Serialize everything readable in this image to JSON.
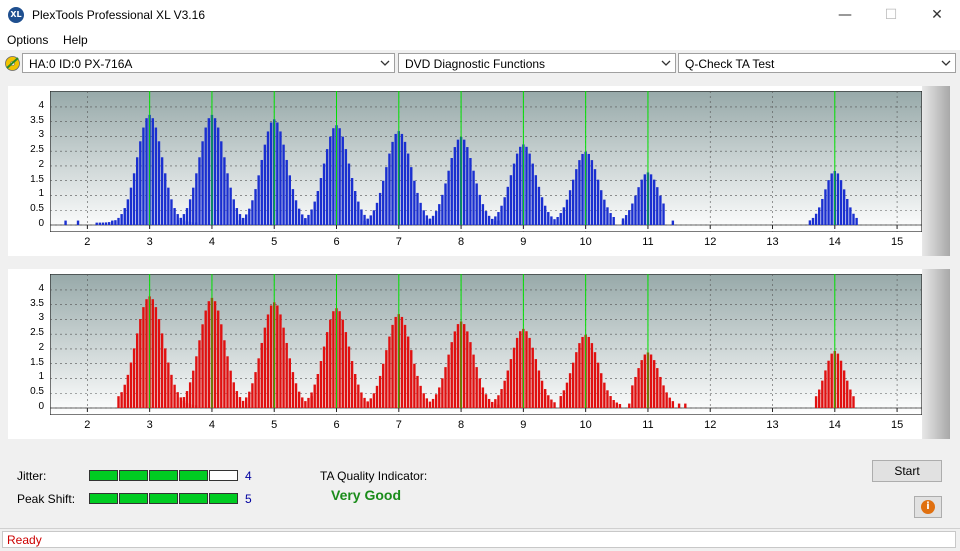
{
  "window": {
    "title": "PlexTools Professional XL V3.16",
    "icon_text": "XL",
    "min_glyph": "—",
    "max_glyph": "☐",
    "close_glyph": "✕"
  },
  "menu": {
    "options": "Options",
    "help": "Help"
  },
  "selectors": {
    "drive": "HA:0 ID:0  PX-716A",
    "function": "DVD Diagnostic Functions",
    "test": "Q-Check TA Test"
  },
  "charts": {
    "y_ticks": [
      "4",
      "3.5",
      "3",
      "2.5",
      "2",
      "1.5",
      "1",
      "0.5",
      "0"
    ],
    "x_ticks": [
      "2",
      "3",
      "4",
      "5",
      "6",
      "7",
      "8",
      "9",
      "10",
      "11",
      "12",
      "13",
      "14",
      "15"
    ]
  },
  "chart_data": [
    {
      "type": "bar",
      "title": "",
      "color": "#1a2fd0",
      "xlim": [
        1.4,
        15.4
      ],
      "ylim": [
        0,
        4.2
      ],
      "grid": true,
      "peak_markers": [
        3,
        4,
        5,
        6,
        7,
        8,
        9,
        10,
        11,
        14
      ],
      "marker_color": "#00e000",
      "groups": [
        {
          "center": 3.0,
          "peak": 3.65,
          "sigma": 0.2,
          "from": 2.15,
          "to": 3.75
        },
        {
          "center": 4.0,
          "peak": 3.65,
          "sigma": 0.2,
          "from": 3.45,
          "to": 4.5
        },
        {
          "center": 5.0,
          "peak": 3.5,
          "sigma": 0.2,
          "from": 4.45,
          "to": 5.5
        },
        {
          "center": 6.0,
          "peak": 3.3,
          "sigma": 0.2,
          "from": 5.45,
          "to": 6.45
        },
        {
          "center": 7.0,
          "peak": 3.1,
          "sigma": 0.2,
          "from": 6.45,
          "to": 7.5
        },
        {
          "center": 8.0,
          "peak": 2.9,
          "sigma": 0.2,
          "from": 7.45,
          "to": 8.55
        },
        {
          "center": 9.0,
          "peak": 2.65,
          "sigma": 0.2,
          "from": 8.5,
          "to": 9.5
        },
        {
          "center": 10.0,
          "peak": 2.4,
          "sigma": 0.2,
          "from": 9.55,
          "to": 10.45
        },
        {
          "center": 11.0,
          "peak": 1.7,
          "sigma": 0.18,
          "from": 10.6,
          "to": 11.25
        },
        {
          "center": 14.0,
          "peak": 1.75,
          "sigma": 0.16,
          "from": 13.6,
          "to": 14.35
        }
      ],
      "sparse_bars": [
        [
          1.65,
          0.15
        ],
        [
          1.85,
          0.15
        ],
        [
          2.4,
          0.15
        ],
        [
          5.5,
          0.15
        ],
        [
          6.5,
          0.2
        ],
        [
          8.6,
          0.15
        ],
        [
          9.6,
          0.1
        ],
        [
          10.6,
          0.15
        ],
        [
          11.4,
          0.15
        ]
      ]
    },
    {
      "type": "bar",
      "title": "",
      "color": "#e01010",
      "xlim": [
        1.4,
        15.4
      ],
      "ylim": [
        0,
        4.2
      ],
      "grid": true,
      "peak_markers": [
        3,
        4,
        5,
        6,
        7,
        8,
        9,
        10,
        11,
        14
      ],
      "marker_color": "#00e000",
      "groups": [
        {
          "center": 3.0,
          "peak": 3.7,
          "sigma": 0.22,
          "from": 2.55,
          "to": 3.75
        },
        {
          "center": 4.0,
          "peak": 3.65,
          "sigma": 0.2,
          "from": 3.55,
          "to": 4.5
        },
        {
          "center": 5.0,
          "peak": 3.5,
          "sigma": 0.2,
          "from": 4.55,
          "to": 5.5
        },
        {
          "center": 6.0,
          "peak": 3.3,
          "sigma": 0.2,
          "from": 5.55,
          "to": 6.5
        },
        {
          "center": 7.0,
          "peak": 3.1,
          "sigma": 0.2,
          "from": 6.55,
          "to": 7.5
        },
        {
          "center": 8.0,
          "peak": 2.85,
          "sigma": 0.2,
          "from": 7.55,
          "to": 8.6
        },
        {
          "center": 9.0,
          "peak": 2.6,
          "sigma": 0.2,
          "from": 8.6,
          "to": 9.5
        },
        {
          "center": 10.0,
          "peak": 2.4,
          "sigma": 0.2,
          "from": 9.6,
          "to": 10.55
        },
        {
          "center": 11.0,
          "peak": 1.8,
          "sigma": 0.18,
          "from": 10.75,
          "to": 11.4
        },
        {
          "center": 14.0,
          "peak": 1.85,
          "sigma": 0.16,
          "from": 13.7,
          "to": 14.3
        }
      ],
      "sparse_bars": [
        [
          2.5,
          0.4
        ],
        [
          4.55,
          0.15
        ],
        [
          5.6,
          0.4
        ],
        [
          6.5,
          0.2
        ],
        [
          8.55,
          0.3
        ],
        [
          9.6,
          0.15
        ],
        [
          10.7,
          0.15
        ],
        [
          11.5,
          0.15
        ],
        [
          11.6,
          0.15
        ]
      ]
    }
  ],
  "bottom": {
    "jitter_label": "Jitter:",
    "jitter_value": "4",
    "jitter_level": 4,
    "peak_label": "Peak Shift:",
    "peak_value": "5",
    "peak_level": 5,
    "meter_segments": 5,
    "ta_label": "TA Quality Indicator:",
    "ta_value": "Very Good",
    "start_label": "Start",
    "info_glyph": "i"
  },
  "status": {
    "text": "Ready"
  }
}
